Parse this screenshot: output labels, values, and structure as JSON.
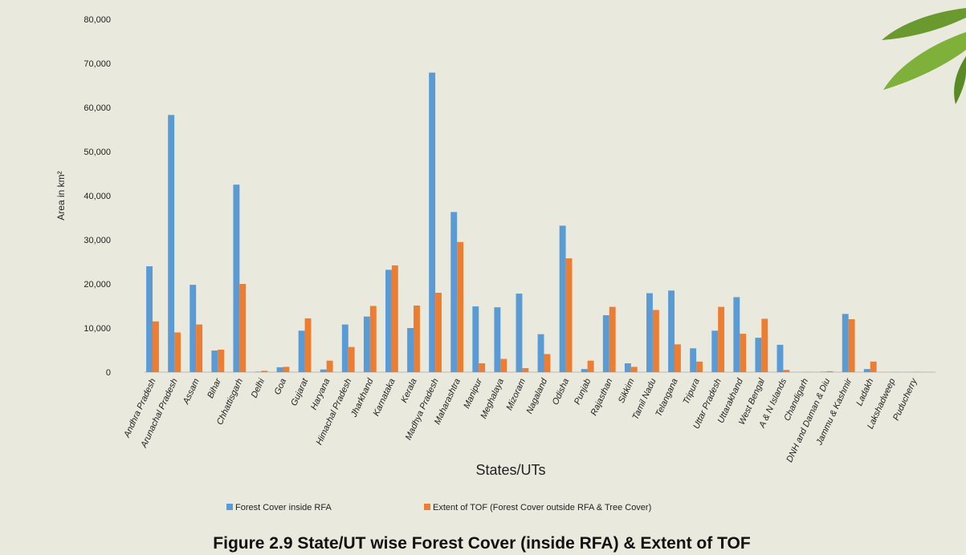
{
  "chart_data": {
    "type": "bar",
    "title": "Figure 2.9 State/UT wise Forest Cover (inside RFA) & Extent of TOF",
    "x_label": "States/UTs",
    "y_label": "Area in km²",
    "categories": [
      "Andhra Pradesh",
      "Arunachal Pradesh",
      "Assam",
      "Bihar",
      "Chhattisgarh",
      "Delhi",
      "Goa",
      "Gujarat",
      "Haryana",
      "Himachal Pradesh",
      "Jharkhand",
      "Karnataka",
      "Kerala",
      "Madhya Pradesh",
      "Maharashtra",
      "Manipur",
      "Meghalaya",
      "Mizoram",
      "Nagaland",
      "Odisha",
      "Punjab",
      "Rajasthan",
      "Sikkim",
      "Tamil Nadu",
      "Telangana",
      "Tripura",
      "Uttar Pradesh",
      "Uttarakhand",
      "West Bengal",
      "A & N Islands",
      "Chandigarh",
      "DNH and Daman & Diu",
      "Jammu & Kashmir",
      "Ladakh",
      "Lakshadweep",
      "Puducherry"
    ],
    "series": [
      {
        "name": "Forest Cover inside RFA",
        "color": "#5b9bd5",
        "values": [
          24000,
          58300,
          19800,
          4900,
          42500,
          100,
          1100,
          9400,
          600,
          10800,
          12600,
          23200,
          10000,
          67900,
          36300,
          14900,
          14700,
          17800,
          8600,
          33200,
          700,
          12900,
          2000,
          17900,
          18500,
          5400,
          9400,
          17000,
          7800,
          6200,
          10,
          100,
          13200,
          700,
          0,
          10
        ]
      },
      {
        "name": "Extent of TOF (Forest Cover outside RFA & Tree Cover)",
        "color": "#ed7d31",
        "values": [
          11500,
          9000,
          10800,
          5100,
          20000,
          300,
          1200,
          12200,
          2600,
          5700,
          15000,
          24200,
          15100,
          18000,
          29500,
          2000,
          3000,
          900,
          4100,
          25800,
          2600,
          14800,
          1200,
          14100,
          6300,
          2400,
          14800,
          8700,
          12100,
          500,
          30,
          200,
          12000,
          2400,
          20,
          50
        ]
      }
    ],
    "ylim": [
      0,
      80000
    ],
    "yticks": [
      {
        "value": 0,
        "label": "0"
      },
      {
        "value": 10000,
        "label": "10,000"
      },
      {
        "value": 20000,
        "label": "20,000"
      },
      {
        "value": 30000,
        "label": "30,000"
      },
      {
        "value": 40000,
        "label": "40,000"
      },
      {
        "value": 50000,
        "label": "50,000"
      },
      {
        "value": 60000,
        "label": "60,000"
      },
      {
        "value": 70000,
        "label": "70,000"
      },
      {
        "value": 80000,
        "label": "80,000"
      }
    ],
    "legend": "bottom"
  }
}
